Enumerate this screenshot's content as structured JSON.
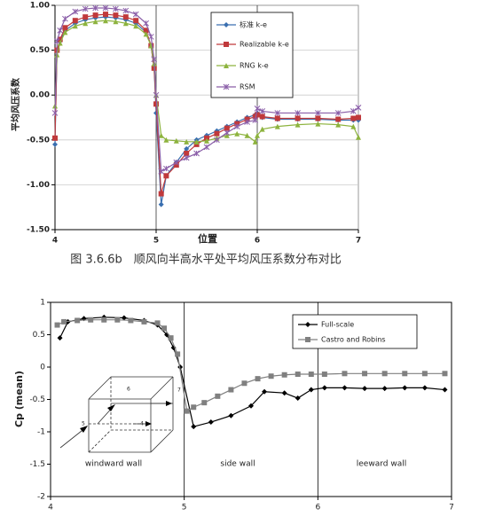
{
  "chart_data": [
    {
      "type": "line",
      "y_label": "平均风压系数",
      "x_label": "位置",
      "caption": "图 3.6.6b　顺风向半高水平处平均风压系数分布对比",
      "xlim": [
        4,
        7
      ],
      "xticks": [
        4,
        5,
        6,
        7
      ],
      "ylim": [
        -1.5,
        1
      ],
      "yticks": [
        {
          "value": 1,
          "label": "1.00"
        },
        {
          "value": 0.5,
          "label": "0.50"
        },
        {
          "value": 0,
          "label": "0.00"
        },
        {
          "value": -0.5,
          "label": "-0.50"
        },
        {
          "value": -1,
          "label": "-1.00"
        },
        {
          "value": -1.5,
          "label": "-1.50"
        }
      ],
      "grid": "both",
      "series": [
        {
          "name": "标准 k-e",
          "color": "#3a6fb0",
          "marker": "diamond",
          "x": [
            4,
            4.02,
            4.05,
            4.1,
            4.2,
            4.3,
            4.4,
            4.5,
            4.6,
            4.7,
            4.8,
            4.9,
            4.95,
            4.98,
            5,
            5.05,
            5.1,
            5.2,
            5.3,
            5.4,
            5.5,
            5.6,
            5.7,
            5.8,
            5.9,
            5.98,
            6,
            6.05,
            6.2,
            6.4,
            6.6,
            6.8,
            6.95,
            7
          ],
          "values": [
            -0.55,
            0.5,
            0.6,
            0.72,
            0.8,
            0.84,
            0.86,
            0.87,
            0.86,
            0.84,
            0.8,
            0.7,
            0.55,
            0.3,
            -0.2,
            -1.22,
            -0.9,
            -0.75,
            -0.6,
            -0.5,
            -0.45,
            -0.4,
            -0.35,
            -0.3,
            -0.25,
            -0.22,
            -0.2,
            -0.25,
            -0.27,
            -0.27,
            -0.27,
            -0.28,
            -0.28,
            -0.28
          ]
        },
        {
          "name": "Realizable k-e",
          "color": "#c0393b",
          "marker": "square",
          "x": [
            4,
            4.02,
            4.05,
            4.1,
            4.2,
            4.3,
            4.4,
            4.5,
            4.6,
            4.7,
            4.8,
            4.9,
            4.95,
            4.98,
            5,
            5.05,
            5.1,
            5.2,
            5.3,
            5.4,
            5.5,
            5.6,
            5.7,
            5.8,
            5.9,
            5.98,
            6,
            6.05,
            6.2,
            6.4,
            6.6,
            6.8,
            6.95,
            7
          ],
          "values": [
            -0.48,
            0.5,
            0.62,
            0.75,
            0.83,
            0.87,
            0.89,
            0.9,
            0.89,
            0.87,
            0.83,
            0.72,
            0.55,
            0.3,
            -0.1,
            -1.1,
            -0.9,
            -0.78,
            -0.65,
            -0.55,
            -0.48,
            -0.43,
            -0.37,
            -0.32,
            -0.27,
            -0.24,
            -0.22,
            -0.24,
            -0.26,
            -0.26,
            -0.26,
            -0.27,
            -0.26,
            -0.25
          ]
        },
        {
          "name": "RNG k-e",
          "color": "#8db33e",
          "marker": "triangle",
          "x": [
            4,
            4.02,
            4.05,
            4.1,
            4.2,
            4.3,
            4.4,
            4.5,
            4.6,
            4.7,
            4.8,
            4.9,
            4.95,
            4.98,
            5,
            5.05,
            5.1,
            5.2,
            5.3,
            5.4,
            5.5,
            5.6,
            5.7,
            5.8,
            5.9,
            5.98,
            6,
            6.05,
            6.2,
            6.4,
            6.6,
            6.8,
            6.95,
            7
          ],
          "values": [
            -0.12,
            0.45,
            0.58,
            0.7,
            0.77,
            0.8,
            0.82,
            0.83,
            0.82,
            0.8,
            0.77,
            0.68,
            0.55,
            0.35,
            0,
            -0.45,
            -0.5,
            -0.51,
            -0.52,
            -0.52,
            -0.51,
            -0.48,
            -0.45,
            -0.43,
            -0.45,
            -0.52,
            -0.45,
            -0.38,
            -0.35,
            -0.33,
            -0.32,
            -0.33,
            -0.35,
            -0.47
          ]
        },
        {
          "name": "RSM",
          "color": "#8a5ea8",
          "marker": "star",
          "x": [
            4,
            4.02,
            4.05,
            4.1,
            4.2,
            4.3,
            4.4,
            4.5,
            4.6,
            4.7,
            4.8,
            4.9,
            4.95,
            4.98,
            5,
            5.05,
            5.1,
            5.2,
            5.3,
            5.4,
            5.5,
            5.6,
            5.7,
            5.8,
            5.9,
            5.98,
            6,
            6.05,
            6.2,
            6.4,
            6.6,
            6.8,
            6.95,
            7
          ],
          "values": [
            -0.2,
            0.6,
            0.72,
            0.85,
            0.93,
            0.96,
            0.97,
            0.97,
            0.96,
            0.94,
            0.9,
            0.8,
            0.65,
            0.4,
            0,
            -0.85,
            -0.82,
            -0.75,
            -0.7,
            -0.65,
            -0.58,
            -0.5,
            -0.42,
            -0.35,
            -0.3,
            -0.28,
            -0.15,
            -0.18,
            -0.2,
            -0.2,
            -0.2,
            -0.2,
            -0.18,
            -0.14
          ]
        }
      ]
    },
    {
      "type": "line",
      "y_label": "Cp (mean)",
      "xlim": [
        4,
        7
      ],
      "xticks": [
        4,
        5,
        6,
        7
      ],
      "ylim": [
        -2,
        1
      ],
      "yticks": [
        1,
        0.5,
        0,
        -0.5,
        -1,
        -1.5,
        -2
      ],
      "grid": "x",
      "annotations": [
        "windward wall",
        "side wall",
        "leeward wall"
      ],
      "inset_labels": [
        "6",
        "7",
        "5",
        "4"
      ],
      "series": [
        {
          "name": "Full-scale",
          "color": "#000000",
          "marker": "diamond",
          "x": [
            4.07,
            4.13,
            4.25,
            4.4,
            4.55,
            4.7,
            4.8,
            4.87,
            4.92,
            4.97,
            5.07,
            5.2,
            5.35,
            5.5,
            5.6,
            5.75,
            5.85,
            5.95,
            6.05,
            6.2,
            6.35,
            6.5,
            6.65,
            6.8,
            6.95
          ],
          "values": [
            0.45,
            0.7,
            0.75,
            0.77,
            0.76,
            0.72,
            0.65,
            0.5,
            0.3,
            0,
            -0.92,
            -0.85,
            -0.75,
            -0.6,
            -0.38,
            -0.4,
            -0.48,
            -0.35,
            -0.32,
            -0.32,
            -0.33,
            -0.33,
            -0.32,
            -0.32,
            -0.35
          ]
        },
        {
          "name": "Castro and Robins",
          "color": "#808080",
          "marker": "square",
          "x": [
            4.05,
            4.1,
            4.2,
            4.3,
            4.4,
            4.5,
            4.6,
            4.7,
            4.8,
            4.85,
            4.9,
            4.95,
            5.02,
            5.07,
            5.15,
            5.25,
            5.35,
            5.45,
            5.55,
            5.65,
            5.75,
            5.85,
            5.95,
            6.05,
            6.2,
            6.35,
            6.5,
            6.65,
            6.8,
            6.95
          ],
          "values": [
            0.65,
            0.7,
            0.72,
            0.73,
            0.73,
            0.73,
            0.72,
            0.7,
            0.68,
            0.6,
            0.45,
            0.2,
            -0.68,
            -0.62,
            -0.55,
            -0.45,
            -0.35,
            -0.25,
            -0.18,
            -0.14,
            -0.12,
            -0.11,
            -0.11,
            -0.11,
            -0.1,
            -0.1,
            -0.1,
            -0.1,
            -0.1,
            -0.1
          ]
        }
      ]
    }
  ]
}
